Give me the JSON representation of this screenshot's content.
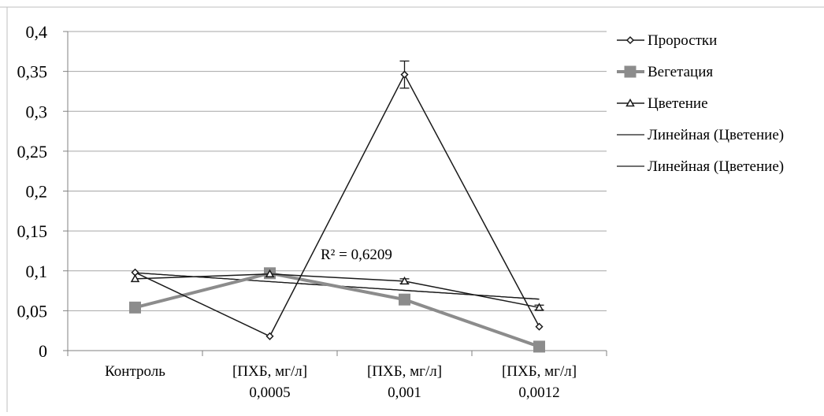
{
  "chart_data": {
    "type": "line",
    "categories": [
      [
        "Контроль"
      ],
      [
        "[ПХБ, мг/л]",
        "0,0005"
      ],
      [
        "[ПХБ, мг/л]",
        "0,001"
      ],
      [
        "[ПХБ, мг/л]",
        "0,0012"
      ]
    ],
    "ylim": [
      0,
      0.4
    ],
    "y_ticks": [
      "0",
      "0,05",
      "0,1",
      "0,15",
      "0,2",
      "0,25",
      "0,3",
      "0,35",
      "0,4"
    ],
    "grid": true,
    "legend_position": "right",
    "series": [
      {
        "name": "Проростки",
        "values": [
          0.098,
          0.018,
          0.346,
          0.03
        ],
        "color": "#1a1a1a",
        "marker": "diamond",
        "error": [
          0,
          0,
          0.017,
          0
        ]
      },
      {
        "name": "Вегетация",
        "values": [
          0.054,
          0.097,
          0.064,
          0.005
        ],
        "color": "#8c8c8c",
        "marker": "square"
      },
      {
        "name": "Цветение",
        "values": [
          0.09,
          0.096,
          0.087,
          0.054
        ],
        "color": "#1a1a1a",
        "marker": "triangle",
        "error": [
          0,
          0,
          0.003,
          0.003
        ]
      }
    ],
    "trendlines": [
      {
        "name": "Линейная (Цветение)",
        "values": [
          0.0975,
          0.0875,
          0.0755,
          0.0645
        ],
        "color": "#1a1a1a"
      },
      {
        "name": "Линейная (Цветение)",
        "values": [
          0.0975,
          0.0875,
          0.0755,
          0.0645
        ],
        "color": "#1a1a1a"
      }
    ],
    "annotation": "R² = 0,6209"
  }
}
